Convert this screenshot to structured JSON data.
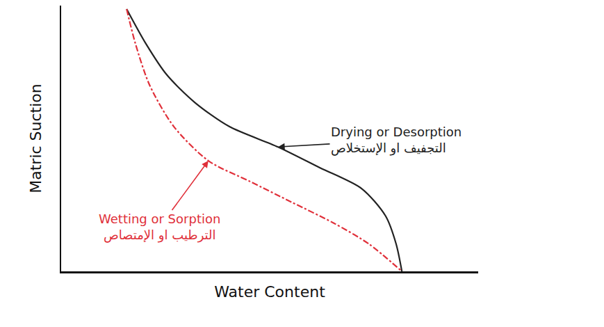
{
  "chart_data": {
    "type": "line",
    "x_label": "Water Content",
    "y_label": "Matric Suction",
    "xlim": [
      0,
      100
    ],
    "ylim": [
      0,
      100
    ],
    "xticks": [],
    "yticks": [],
    "tick_labels": false,
    "grid": false,
    "series": [
      {
        "name": "Drying or Desorption",
        "name_ar": "التجفيف او الإستخلاص",
        "color": "#222222",
        "line_style": "solid",
        "x": [
          15.7,
          20.3,
          25.3,
          32.0,
          40.3,
          52.0,
          62.0,
          72.0,
          77.8,
          80.3,
          81.7
        ],
        "values": [
          98.7,
          85.7,
          74.0,
          63.6,
          54.5,
          46.8,
          39.0,
          31.2,
          20.8,
          10.4,
          0
        ]
      },
      {
        "name": "Wetting or Sorption",
        "name_ar": "الترطيب او الإمتصاص",
        "color": "#e0303a",
        "line_style": "dashdot",
        "x": [
          15.7,
          17.8,
          21.2,
          27.0,
          35.3,
          45.3,
          55.3,
          65.3,
          73.7,
          81.7
        ],
        "values": [
          98.7,
          85.7,
          70.1,
          54.5,
          41.6,
          33.8,
          26.0,
          18.2,
          10.4,
          0
        ]
      }
    ]
  }
}
